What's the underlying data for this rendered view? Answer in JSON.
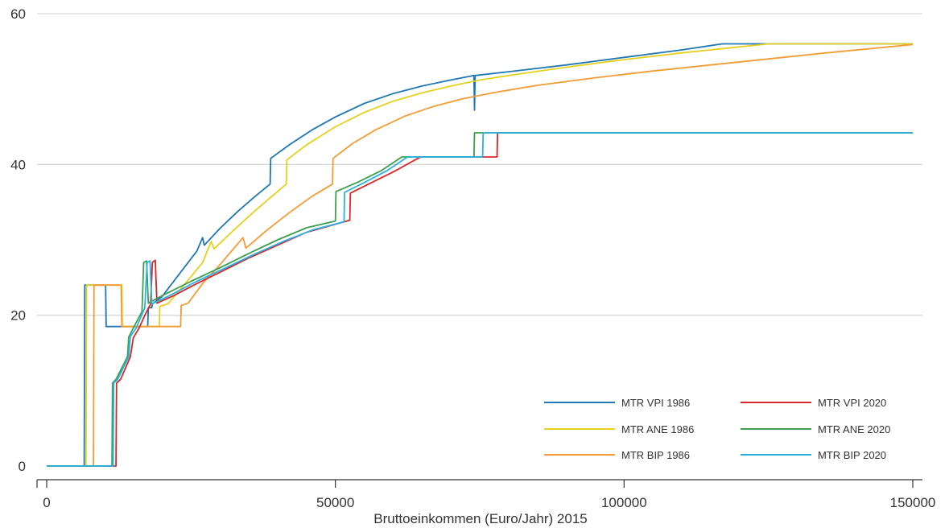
{
  "chart_data": {
    "type": "line",
    "title": "",
    "xlabel": "Bruttoeinkommen (Euro/Jahr) 2015",
    "ylabel": "",
    "xlim": [
      0,
      150000
    ],
    "ylim": [
      0,
      60
    ],
    "x_ticks": [
      0,
      50000,
      100000,
      150000
    ],
    "x_tick_labels": [
      "0",
      "50000",
      "100000",
      "150000"
    ],
    "y_ticks": [
      0,
      20,
      40,
      60
    ],
    "y_tick_labels": [
      "0",
      "20",
      "40",
      "60"
    ],
    "grid": "horizontal",
    "legend_position": "bottom-right",
    "series": [
      {
        "name": "MTR VPI 1986",
        "color": "#1f77b4",
        "points": [
          [
            0,
            0
          ],
          [
            6500,
            0
          ],
          [
            6600,
            24
          ],
          [
            10200,
            24
          ],
          [
            10300,
            18.5
          ],
          [
            17500,
            18.5
          ],
          [
            17600,
            21
          ],
          [
            18200,
            21
          ],
          [
            18300,
            21.5
          ],
          [
            20000,
            22.5
          ],
          [
            23000,
            25.5
          ],
          [
            26000,
            28.5
          ],
          [
            27000,
            30.3
          ],
          [
            27300,
            29.3
          ],
          [
            30000,
            31.5
          ],
          [
            33000,
            33.7
          ],
          [
            36000,
            35.7
          ],
          [
            38700,
            37.4
          ],
          [
            38800,
            40.8
          ],
          [
            42000,
            42.6
          ],
          [
            46000,
            44.6
          ],
          [
            50000,
            46.3
          ],
          [
            55000,
            48.1
          ],
          [
            60000,
            49.4
          ],
          [
            65000,
            50.4
          ],
          [
            70000,
            51.2
          ],
          [
            74000,
            51.8
          ],
          [
            74100,
            47.2
          ],
          [
            74200,
            51.8
          ],
          [
            80000,
            52.3
          ],
          [
            90000,
            53.2
          ],
          [
            100000,
            54.2
          ],
          [
            110000,
            55.2
          ],
          [
            117000,
            56
          ],
          [
            150000,
            56
          ]
        ]
      },
      {
        "name": "MTR ANE 1986",
        "color": "#e6d01e",
        "points": [
          [
            0,
            0
          ],
          [
            6800,
            0
          ],
          [
            6900,
            24
          ],
          [
            13000,
            24
          ],
          [
            13100,
            18.5
          ],
          [
            19500,
            18.5
          ],
          [
            19600,
            21.2
          ],
          [
            21000,
            21.5
          ],
          [
            24000,
            24.2
          ],
          [
            27000,
            27
          ],
          [
            28500,
            29.8
          ],
          [
            29000,
            28.8
          ],
          [
            32000,
            31
          ],
          [
            36000,
            33.8
          ],
          [
            41500,
            37.4
          ],
          [
            41600,
            40.6
          ],
          [
            45000,
            42.6
          ],
          [
            50000,
            45
          ],
          [
            55000,
            46.9
          ],
          [
            60000,
            48.4
          ],
          [
            65000,
            49.5
          ],
          [
            70000,
            50.4
          ],
          [
            75000,
            51.2
          ],
          [
            80000,
            51.8
          ],
          [
            90000,
            52.9
          ],
          [
            100000,
            53.9
          ],
          [
            110000,
            54.8
          ],
          [
            125000,
            56
          ],
          [
            150000,
            56
          ]
        ]
      },
      {
        "name": "MTR BIP 1986",
        "color": "#f39b35",
        "points": [
          [
            0,
            0
          ],
          [
            8100,
            0
          ],
          [
            8200,
            24
          ],
          [
            12900,
            24
          ],
          [
            13000,
            18.5
          ],
          [
            23200,
            18.5
          ],
          [
            23300,
            21.3
          ],
          [
            24500,
            21.6
          ],
          [
            27000,
            24.2
          ],
          [
            30000,
            26.7
          ],
          [
            34000,
            30.3
          ],
          [
            34500,
            28.9
          ],
          [
            38000,
            31.2
          ],
          [
            42000,
            33.6
          ],
          [
            46000,
            35.8
          ],
          [
            49500,
            37.4
          ],
          [
            49600,
            40.8
          ],
          [
            53000,
            42.8
          ],
          [
            57000,
            44.6
          ],
          [
            62000,
            46.4
          ],
          [
            67000,
            47.7
          ],
          [
            72000,
            48.7
          ],
          [
            78000,
            49.6
          ],
          [
            85000,
            50.5
          ],
          [
            95000,
            51.5
          ],
          [
            105000,
            52.4
          ],
          [
            115000,
            53.2
          ],
          [
            125000,
            54
          ],
          [
            135000,
            54.8
          ],
          [
            150000,
            55.9
          ]
        ]
      },
      {
        "name": "MTR VPI 2020",
        "color": "#d62728",
        "points": [
          [
            0,
            0
          ],
          [
            12000,
            0
          ],
          [
            12100,
            11
          ],
          [
            12800,
            11.5
          ],
          [
            14500,
            14.5
          ],
          [
            15000,
            17
          ],
          [
            16000,
            18.3
          ],
          [
            17000,
            20
          ],
          [
            18000,
            21.5
          ],
          [
            18300,
            27
          ],
          [
            18800,
            27.3
          ],
          [
            19100,
            21.6
          ],
          [
            22000,
            22.6
          ],
          [
            26000,
            24.2
          ],
          [
            30000,
            25.7
          ],
          [
            35000,
            27.6
          ],
          [
            40000,
            29.3
          ],
          [
            45000,
            31
          ],
          [
            52500,
            32.6
          ],
          [
            52600,
            36.2
          ],
          [
            56000,
            37.5
          ],
          [
            60000,
            39
          ],
          [
            64500,
            40.9
          ],
          [
            65000,
            41
          ],
          [
            78000,
            41
          ],
          [
            78100,
            44.2
          ],
          [
            150000,
            44.2
          ]
        ]
      },
      {
        "name": "MTR ANE 2020",
        "color": "#3e9e4e",
        "points": [
          [
            0,
            0
          ],
          [
            11300,
            0
          ],
          [
            11400,
            11
          ],
          [
            12000,
            11.5
          ],
          [
            14000,
            14.5
          ],
          [
            14200,
            17.1
          ],
          [
            15000,
            18.3
          ],
          [
            16500,
            20.5
          ],
          [
            16800,
            27
          ],
          [
            17300,
            27.2
          ],
          [
            17600,
            21.6
          ],
          [
            20000,
            22.6
          ],
          [
            25000,
            24.5
          ],
          [
            30000,
            26.3
          ],
          [
            35000,
            28.2
          ],
          [
            40000,
            30
          ],
          [
            45000,
            31.6
          ],
          [
            50000,
            32.5
          ],
          [
            50100,
            36.4
          ],
          [
            54000,
            37.7
          ],
          [
            58000,
            39.2
          ],
          [
            61500,
            41
          ],
          [
            74000,
            41
          ],
          [
            74100,
            44.2
          ],
          [
            150000,
            44.2
          ]
        ]
      },
      {
        "name": "MTR BIP 2020",
        "color": "#29b1e3",
        "points": [
          [
            0,
            0
          ],
          [
            11500,
            0
          ],
          [
            11600,
            11
          ],
          [
            12300,
            11.5
          ],
          [
            14200,
            14.5
          ],
          [
            14500,
            17.2
          ],
          [
            15500,
            18.3
          ],
          [
            17000,
            21
          ],
          [
            17400,
            27
          ],
          [
            17900,
            27.2
          ],
          [
            18200,
            21.5
          ],
          [
            21000,
            22.5
          ],
          [
            26000,
            24.5
          ],
          [
            31000,
            26.3
          ],
          [
            36000,
            28.1
          ],
          [
            41000,
            29.8
          ],
          [
            46000,
            31.3
          ],
          [
            51500,
            32.4
          ],
          [
            51600,
            36.3
          ],
          [
            55000,
            37.6
          ],
          [
            59000,
            39.2
          ],
          [
            62500,
            41
          ],
          [
            75500,
            41
          ],
          [
            75600,
            44.2
          ],
          [
            150000,
            44.2
          ]
        ]
      }
    ],
    "legend_order": [
      "MTR VPI 1986",
      "MTR VPI 2020",
      "MTR ANE 1986",
      "MTR ANE 2020",
      "MTR BIP 1986",
      "MTR BIP 2020"
    ]
  }
}
